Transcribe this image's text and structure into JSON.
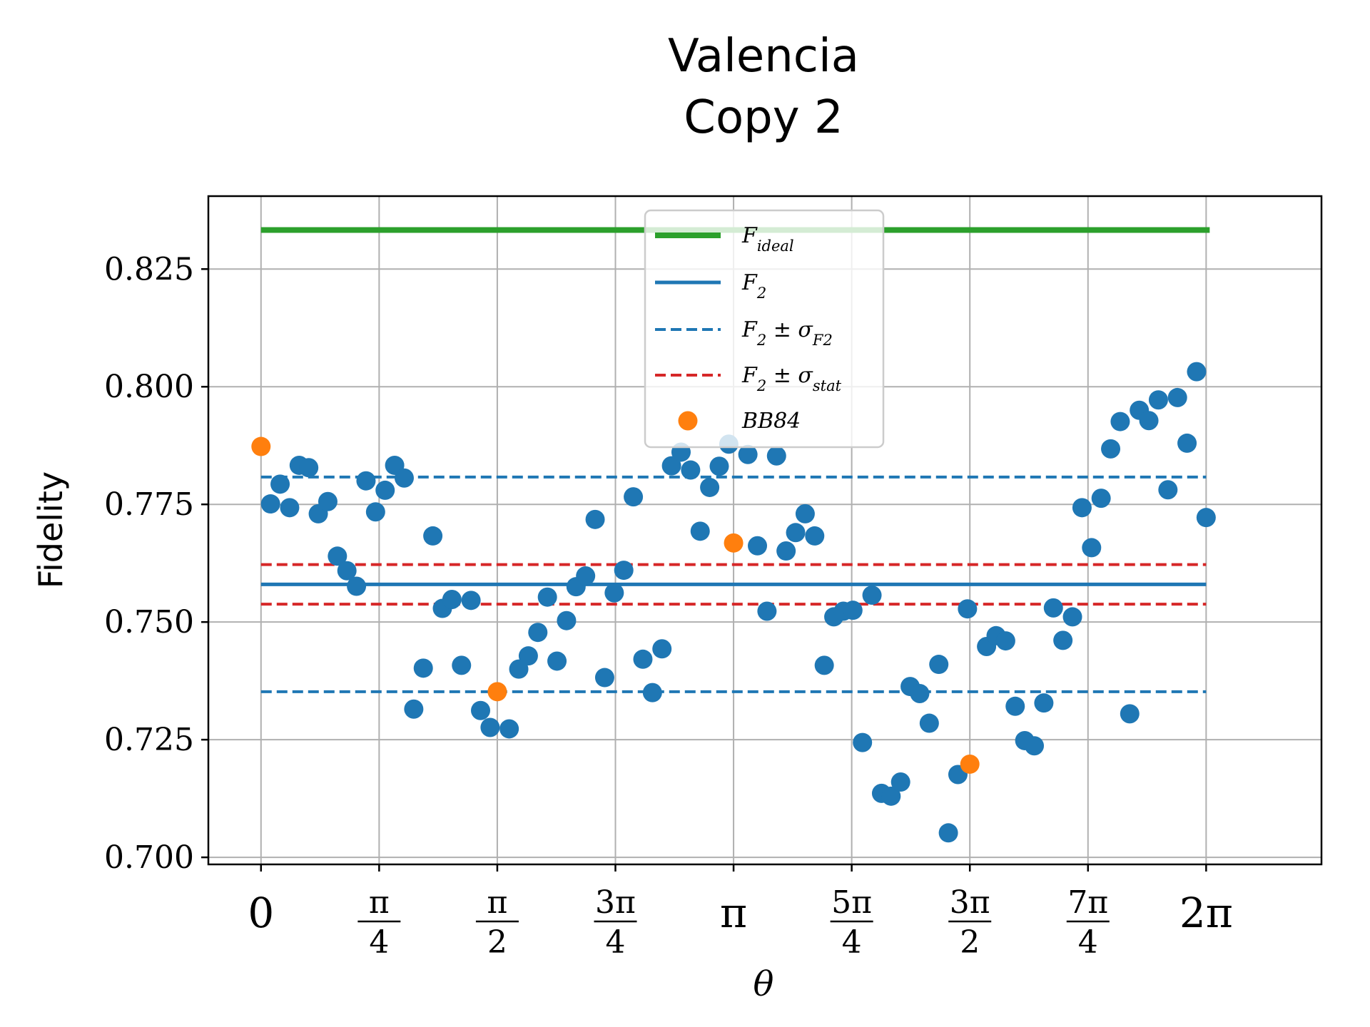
{
  "chart_data": {
    "type": "scatter",
    "title": [
      "Valencia",
      "Copy 2"
    ],
    "xlabel": "θ",
    "ylabel": "Fidelity",
    "xlim": [
      -0.35,
      7.05
    ],
    "ylim": [
      0.6985,
      0.8405
    ],
    "grid": true,
    "legend_position": "top-center",
    "x_ticks": [
      {
        "value": 0,
        "label": "0",
        "den": ""
      },
      {
        "value": 0.7854,
        "label": "π",
        "den": "4"
      },
      {
        "value": 1.5708,
        "label": "π",
        "den": "2"
      },
      {
        "value": 2.3562,
        "label": "3π",
        "den": "4"
      },
      {
        "value": 3.1416,
        "label": "π",
        "den": ""
      },
      {
        "value": 3.927,
        "label": "5π",
        "den": "4"
      },
      {
        "value": 4.7124,
        "label": "3π",
        "den": "2"
      },
      {
        "value": 5.4978,
        "label": "7π",
        "den": "4"
      },
      {
        "value": 6.2832,
        "label": "2π",
        "den": ""
      }
    ],
    "y_ticks": [
      {
        "value": 0.7,
        "label": "0.700"
      },
      {
        "value": 0.725,
        "label": "0.725"
      },
      {
        "value": 0.75,
        "label": "0.750"
      },
      {
        "value": 0.775,
        "label": "0.775"
      },
      {
        "value": 0.8,
        "label": "0.800"
      },
      {
        "value": 0.825,
        "label": "0.825"
      }
    ],
    "lines": [
      {
        "name": "F_ideal",
        "legend": "F_ideal",
        "y": 0.8333,
        "x0": 0,
        "x1": 6.2832,
        "color": "#2ca02c",
        "style": "solid",
        "width": 8
      },
      {
        "name": "F_2",
        "legend": "F_2",
        "y": 0.758,
        "x0": 0,
        "x1": 6.2832,
        "color": "#1f77b4",
        "style": "solid",
        "width": 5
      },
      {
        "name": "F2-sigma-F2-upper",
        "legend": "F_2 ± σ_F2",
        "y": 0.7808,
        "x0": 0,
        "x1": 6.2832,
        "color": "#1f77b4",
        "style": "dashed",
        "width": 4
      },
      {
        "name": "F2-sigma-F2-lower",
        "legend": "",
        "y": 0.7352,
        "x0": 0,
        "x1": 6.2832,
        "color": "#1f77b4",
        "style": "dashed",
        "width": 4
      },
      {
        "name": "F2-sigma-stat-upper",
        "legend": "F_2 ± σ_stat",
        "y": 0.7622,
        "x0": 0,
        "x1": 6.2832,
        "color": "#d62728",
        "style": "dashed",
        "width": 4
      },
      {
        "name": "F2-sigma-stat-lower",
        "legend": "",
        "y": 0.7538,
        "x0": 0,
        "x1": 6.2832,
        "color": "#d62728",
        "style": "dashed",
        "width": 4
      }
    ],
    "legend": [
      {
        "kind": "line",
        "color": "#2ca02c",
        "style": "solid",
        "base": "F",
        "sub": "ideal",
        "rest": ""
      },
      {
        "kind": "line",
        "color": "#1f77b4",
        "style": "solid",
        "base": "F",
        "sub": "2",
        "rest": ""
      },
      {
        "kind": "line",
        "color": "#1f77b4",
        "style": "dashed",
        "base": "F",
        "sub": "2",
        "rest": " ± σ",
        "rest_sub": "F2"
      },
      {
        "kind": "line",
        "color": "#d62728",
        "style": "dashed",
        "base": "F",
        "sub": "2",
        "rest": " ± σ",
        "rest_sub": "stat"
      },
      {
        "kind": "marker",
        "color": "#ff7f0e",
        "base": "BB84",
        "sub": "",
        "rest": ""
      }
    ],
    "series": [
      {
        "name": "F_2 samples",
        "color": "#1f77b4",
        "points": [
          [
            0.0635,
            0.7751
          ],
          [
            0.127,
            0.7793
          ],
          [
            0.1904,
            0.7743
          ],
          [
            0.2539,
            0.7833
          ],
          [
            0.3174,
            0.7828
          ],
          [
            0.3808,
            0.773
          ],
          [
            0.4443,
            0.7756
          ],
          [
            0.5078,
            0.764
          ],
          [
            0.5712,
            0.7609
          ],
          [
            0.6347,
            0.7576
          ],
          [
            0.6981,
            0.78
          ],
          [
            0.7616,
            0.7734
          ],
          [
            0.8251,
            0.778
          ],
          [
            0.8885,
            0.7833
          ],
          [
            0.952,
            0.7806
          ],
          [
            1.0155,
            0.7315
          ],
          [
            1.0789,
            0.7402
          ],
          [
            1.1424,
            0.7683
          ],
          [
            1.2059,
            0.7529
          ],
          [
            1.2693,
            0.7548
          ],
          [
            1.3328,
            0.7408
          ],
          [
            1.3963,
            0.7546
          ],
          [
            1.4597,
            0.7312
          ],
          [
            1.5232,
            0.7276
          ],
          [
            1.6501,
            0.7273
          ],
          [
            1.7136,
            0.74
          ],
          [
            1.7771,
            0.7428
          ],
          [
            1.8405,
            0.7478
          ],
          [
            1.904,
            0.7553
          ],
          [
            1.9675,
            0.7417
          ],
          [
            2.0309,
            0.7503
          ],
          [
            2.0944,
            0.7575
          ],
          [
            2.1579,
            0.7598
          ],
          [
            2.2213,
            0.7718
          ],
          [
            2.2848,
            0.7382
          ],
          [
            2.3483,
            0.7562
          ],
          [
            2.4117,
            0.761
          ],
          [
            2.4752,
            0.7766
          ],
          [
            2.5387,
            0.7421
          ],
          [
            2.6021,
            0.735
          ],
          [
            2.6656,
            0.7443
          ],
          [
            2.7291,
            0.7832
          ],
          [
            2.7925,
            0.7861
          ],
          [
            2.856,
            0.7823
          ],
          [
            2.9195,
            0.7693
          ],
          [
            2.9829,
            0.7786
          ],
          [
            3.0464,
            0.7831
          ],
          [
            3.1099,
            0.7878
          ],
          [
            3.2368,
            0.7856
          ],
          [
            3.3003,
            0.7662
          ],
          [
            3.3637,
            0.7523
          ],
          [
            3.4272,
            0.7853
          ],
          [
            3.4907,
            0.7651
          ],
          [
            3.5541,
            0.769
          ],
          [
            3.6176,
            0.773
          ],
          [
            3.681,
            0.7683
          ],
          [
            3.7445,
            0.7408
          ],
          [
            3.808,
            0.7511
          ],
          [
            3.8714,
            0.7523
          ],
          [
            3.9349,
            0.7525
          ],
          [
            3.9984,
            0.7244
          ],
          [
            4.0618,
            0.7557
          ],
          [
            4.1253,
            0.7136
          ],
          [
            4.1888,
            0.713
          ],
          [
            4.2522,
            0.716
          ],
          [
            4.3157,
            0.7363
          ],
          [
            4.3792,
            0.7348
          ],
          [
            4.4426,
            0.7285
          ],
          [
            4.5061,
            0.741
          ],
          [
            4.5696,
            0.7052
          ],
          [
            4.633,
            0.7176
          ],
          [
            4.6965,
            0.7528
          ],
          [
            4.8234,
            0.7448
          ],
          [
            4.8869,
            0.7471
          ],
          [
            4.9504,
            0.746
          ],
          [
            5.0138,
            0.7321
          ],
          [
            5.0773,
            0.7248
          ],
          [
            5.1408,
            0.7237
          ],
          [
            5.2042,
            0.7328
          ],
          [
            5.2677,
            0.753
          ],
          [
            5.3312,
            0.7461
          ],
          [
            5.3946,
            0.7511
          ],
          [
            5.4581,
            0.7743
          ],
          [
            5.5216,
            0.7658
          ],
          [
            5.585,
            0.7763
          ],
          [
            5.6485,
            0.7868
          ],
          [
            5.712,
            0.7926
          ],
          [
            5.7754,
            0.7305
          ],
          [
            5.8389,
            0.795
          ],
          [
            5.9024,
            0.7928
          ],
          [
            5.9658,
            0.7972
          ],
          [
            6.0293,
            0.7781
          ],
          [
            6.0928,
            0.7977
          ],
          [
            6.1562,
            0.788
          ],
          [
            6.2197,
            0.8032
          ],
          [
            6.2832,
            0.7722
          ]
        ]
      },
      {
        "name": "BB84",
        "color": "#ff7f0e",
        "points": [
          [
            0.0,
            0.7873
          ],
          [
            1.5708,
            0.7352
          ],
          [
            3.1416,
            0.7668
          ],
          [
            4.7124,
            0.7198
          ]
        ]
      }
    ]
  }
}
